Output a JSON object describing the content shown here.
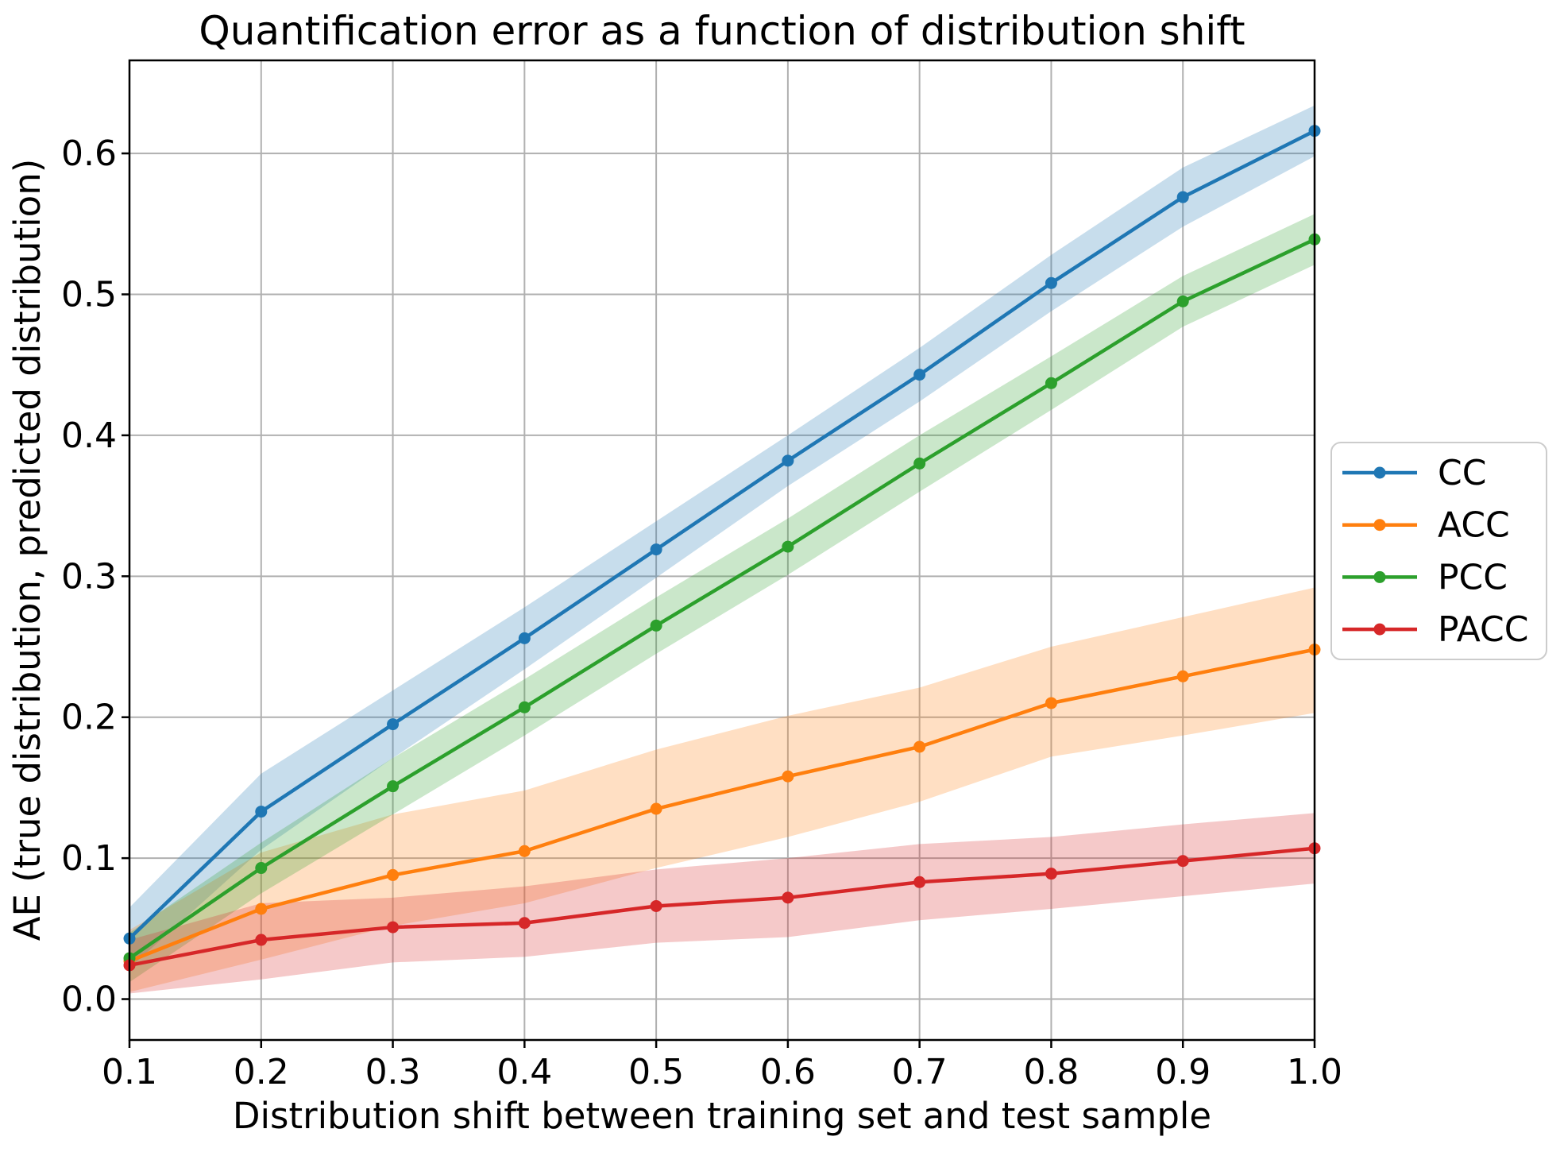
{
  "figure": {
    "background": "#ffffff",
    "grid_color": "#b0b0b0",
    "spine_color": "#000000",
    "legend_border_color": "#cccccc"
  },
  "chart_data": {
    "type": "line",
    "title": "Quantification error as a function of distribution shift",
    "xlabel": "Distribution shift between training set and test sample",
    "ylabel": "AE (true distribution, predicted distribution)",
    "x": [
      0.1,
      0.2,
      0.3,
      0.4,
      0.5,
      0.6,
      0.7,
      0.8,
      0.9,
      1.0
    ],
    "xlim": [
      0.1,
      1.0
    ],
    "ylim": [
      -0.029,
      0.666
    ],
    "xtick_labels": [
      "0.1",
      "0.2",
      "0.3",
      "0.4",
      "0.5",
      "0.6",
      "0.7",
      "0.8",
      "0.9",
      "1.0"
    ],
    "ytick_labels": [
      "0.0",
      "0.1",
      "0.2",
      "0.3",
      "0.4",
      "0.5",
      "0.6"
    ],
    "grid": true,
    "band_opacity": 0.25,
    "legend": {
      "position": "outside-right",
      "entries": [
        "CC",
        "ACC",
        "PCC",
        "PACC"
      ]
    },
    "series": [
      {
        "name": "CC",
        "color": "#1f77b4",
        "values": [
          0.043,
          0.133,
          0.195,
          0.256,
          0.319,
          0.382,
          0.443,
          0.508,
          0.569,
          0.616
        ],
        "band_upper": [
          0.065,
          0.16,
          0.219,
          0.278,
          0.339,
          0.4,
          0.462,
          0.528,
          0.59,
          0.634
        ],
        "band_lower": [
          0.022,
          0.106,
          0.171,
          0.234,
          0.299,
          0.364,
          0.424,
          0.488,
          0.548,
          0.598
        ]
      },
      {
        "name": "ACC",
        "color": "#ff7f0e",
        "values": [
          0.027,
          0.064,
          0.088,
          0.105,
          0.135,
          0.158,
          0.179,
          0.21,
          0.229,
          0.248
        ],
        "band_upper": [
          0.049,
          0.104,
          0.131,
          0.148,
          0.177,
          0.201,
          0.221,
          0.25,
          0.271,
          0.292
        ],
        "band_lower": [
          0.005,
          0.028,
          0.052,
          0.068,
          0.093,
          0.115,
          0.14,
          0.172,
          0.187,
          0.203
        ]
      },
      {
        "name": "PCC",
        "color": "#2ca02c",
        "values": [
          0.029,
          0.093,
          0.151,
          0.207,
          0.265,
          0.321,
          0.38,
          0.437,
          0.495,
          0.539
        ],
        "band_upper": [
          0.047,
          0.111,
          0.171,
          0.227,
          0.285,
          0.341,
          0.4,
          0.456,
          0.513,
          0.557
        ],
        "band_lower": [
          0.012,
          0.075,
          0.131,
          0.187,
          0.245,
          0.301,
          0.36,
          0.418,
          0.477,
          0.521
        ]
      },
      {
        "name": "PACC",
        "color": "#d62728",
        "values": [
          0.024,
          0.042,
          0.051,
          0.054,
          0.066,
          0.072,
          0.083,
          0.089,
          0.098,
          0.107
        ],
        "band_upper": [
          0.042,
          0.068,
          0.072,
          0.08,
          0.092,
          0.1,
          0.11,
          0.115,
          0.124,
          0.132
        ],
        "band_lower": [
          0.004,
          0.014,
          0.026,
          0.03,
          0.04,
          0.044,
          0.056,
          0.064,
          0.073,
          0.082
        ]
      }
    ]
  }
}
